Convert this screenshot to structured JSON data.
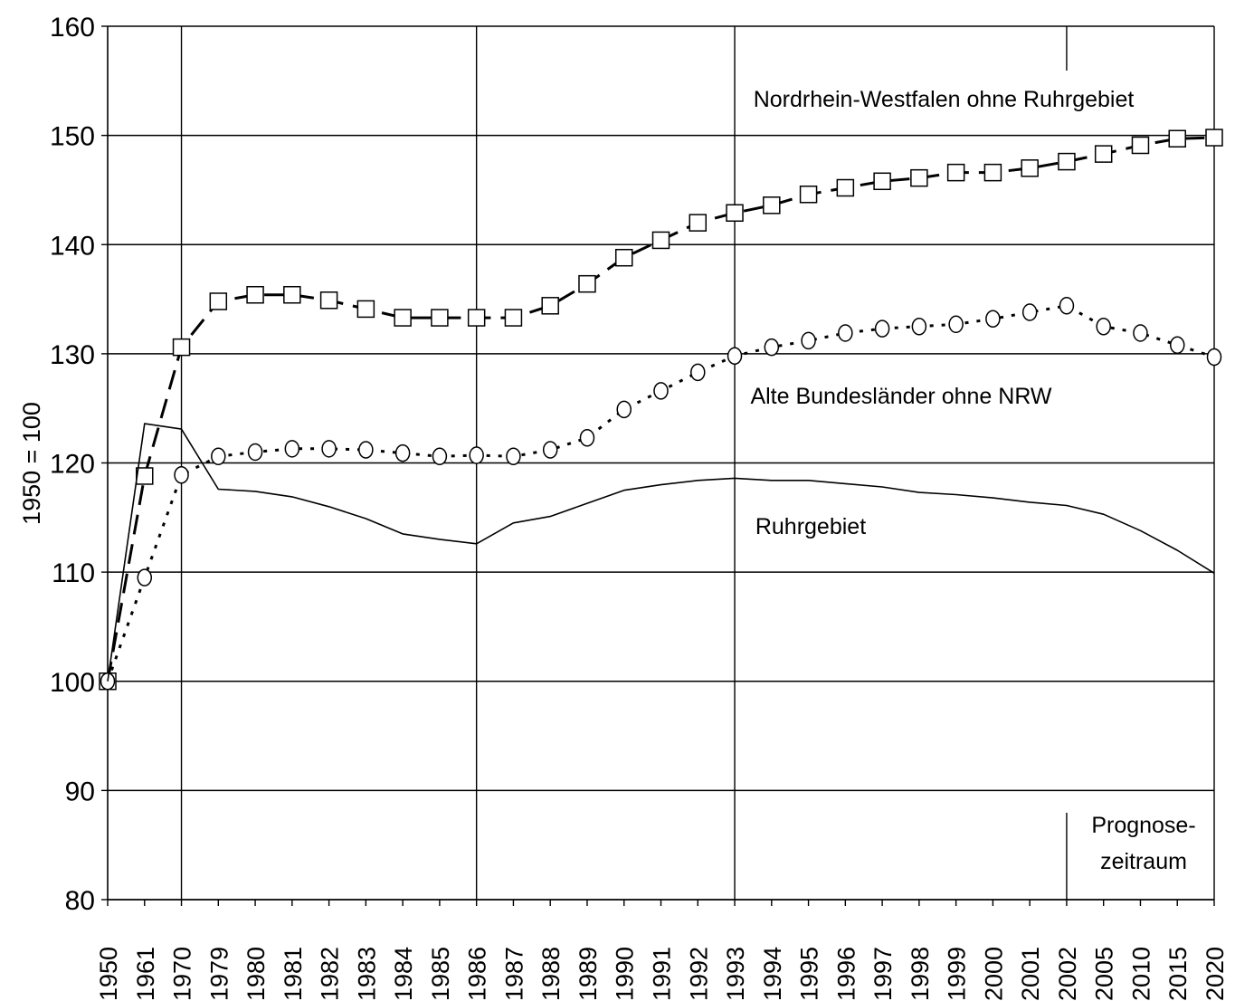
{
  "chart_data": {
    "type": "line",
    "title": "",
    "xlabel": "",
    "ylabel": "1950 = 100",
    "ylim": [
      80,
      160
    ],
    "yticks": [
      "80",
      "90",
      "100",
      "110",
      "120",
      "130",
      "140",
      "150",
      "160"
    ],
    "grid": "horizontal",
    "categories": [
      "1950",
      "1961",
      "1970",
      "1979",
      "1980",
      "1981",
      "1982",
      "1983",
      "1984",
      "1985",
      "1986",
      "1987",
      "1988",
      "1989",
      "1990",
      "1991",
      "1992",
      "1993",
      "1994",
      "1995",
      "1996",
      "1997",
      "1998",
      "1999",
      "2000",
      "2001",
      "2002",
      "2005",
      "2010",
      "2015",
      "2020"
    ],
    "vertical_markers": [
      "1970",
      "1986",
      "1993",
      "2002"
    ],
    "series": [
      {
        "name": "Nordrhein-Westfalen ohne Ruhrgebiet",
        "line_style": "dashed",
        "marker": "square",
        "values": [
          100,
          118.8,
          130.6,
          134.8,
          135.4,
          135.4,
          134.9,
          134.1,
          133.3,
          133.3,
          133.3,
          133.3,
          134.4,
          136.4,
          138.8,
          140.4,
          142.0,
          142.9,
          143.6,
          144.6,
          145.2,
          145.8,
          146.1,
          146.6,
          146.6,
          147.0,
          147.6,
          148.3,
          149.1,
          149.7,
          149.8
        ]
      },
      {
        "name": "Alte Bundesländer ohne NRW",
        "line_style": "dotted",
        "marker": "circle",
        "values": [
          100,
          109.5,
          118.9,
          120.6,
          121.0,
          121.3,
          121.3,
          121.2,
          120.9,
          120.6,
          120.7,
          120.6,
          121.2,
          122.3,
          124.9,
          126.6,
          128.3,
          129.8,
          130.6,
          131.2,
          131.9,
          132.3,
          132.5,
          132.7,
          133.2,
          133.8,
          134.4,
          132.5,
          131.9,
          130.8,
          129.7
        ]
      },
      {
        "name": "Ruhrgebiet",
        "line_style": "solid",
        "marker": "none",
        "values": [
          100,
          123.6,
          123.1,
          117.6,
          117.4,
          116.9,
          116.0,
          114.9,
          113.5,
          113.0,
          112.6,
          114.5,
          115.1,
          116.3,
          117.5,
          118.0,
          118.4,
          118.6,
          118.4,
          118.4,
          118.1,
          117.8,
          117.3,
          117.1,
          116.8,
          116.4,
          116.1,
          115.3,
          113.8,
          112.0,
          109.9
        ]
      }
    ],
    "annotations": [
      {
        "lines": [
          "Nordrhein-Westfalen ohne Ruhrgebiet"
        ]
      },
      {
        "lines": [
          "Alte Bundesländer ohne NRW"
        ]
      },
      {
        "lines": [
          "Ruhrgebiet"
        ]
      },
      {
        "lines": [
          "Prognose-",
          "zeitraum"
        ]
      }
    ]
  }
}
